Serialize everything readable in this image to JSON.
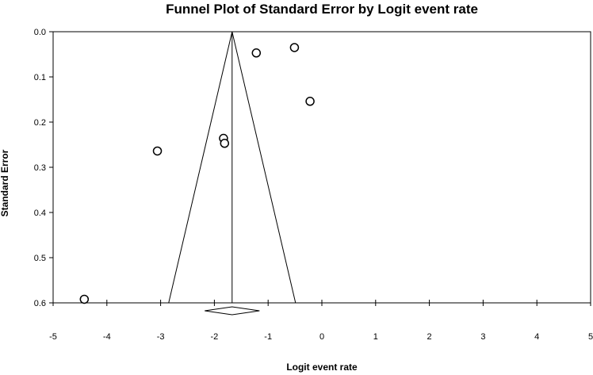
{
  "chart_data": {
    "type": "scatter",
    "title": "Funnel Plot of Standard Error by Logit event rate",
    "xlabel": "Logit event rate",
    "ylabel": "Standard Error",
    "xlim": [
      -5,
      5
    ],
    "ylim": [
      0.0,
      0.6
    ],
    "y_axis_reversed": true,
    "x_ticks": [
      -5,
      -4,
      -3,
      -2,
      -1,
      0,
      1,
      2,
      3,
      4,
      5
    ],
    "y_ticks": [
      "0.0",
      "0.1",
      "0.2",
      "0.3",
      "0.4",
      "0.5",
      "0.6"
    ],
    "grid": false,
    "legend": "none",
    "points": [
      {
        "x": -4.42,
        "y": 0.592
      },
      {
        "x": -3.06,
        "y": 0.264
      },
      {
        "x": -1.83,
        "y": 0.236
      },
      {
        "x": -1.81,
        "y": 0.247
      },
      {
        "x": -1.22,
        "y": 0.047
      },
      {
        "x": -0.51,
        "y": 0.035
      },
      {
        "x": -0.22,
        "y": 0.154
      }
    ],
    "pooled_estimate": -1.67,
    "funnel_base": [
      -2.85,
      -0.49
    ],
    "summary_diamond": {
      "center": -1.67,
      "lower": -2.18,
      "upper": -1.16
    }
  }
}
